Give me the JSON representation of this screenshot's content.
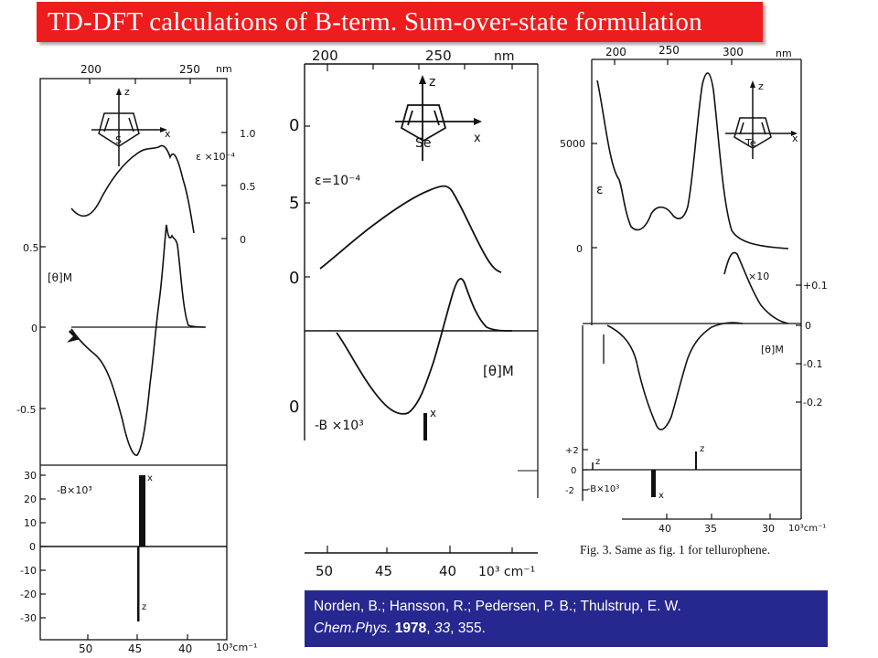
{
  "slide": {
    "title": "TD-DFT calculations of B-term.  Sum-over-state formulation"
  },
  "panels": {
    "thiophene": {
      "molecule_label": "S",
      "axis_z": "z",
      "axis_x": "x",
      "nm_ticks": [
        "200",
        "250"
      ],
      "nm_unit": "nm",
      "eps_label": "ε ×10⁻⁴",
      "eps_ticks": [
        "1.0",
        "0.5",
        "0"
      ],
      "theta_label": "[θ]M",
      "theta_ticks": [
        "0.5",
        "0",
        "-0.5"
      ],
      "b_label": "-B×10³",
      "b_ticks": [
        "30",
        "20",
        "10",
        "0",
        "-10",
        "-20",
        "-30"
      ],
      "bar_x": "x",
      "bar_z": "z",
      "wn_ticks": [
        "50",
        "45",
        "40"
      ],
      "wn_unit": "10³cm⁻¹"
    },
    "selenophene": {
      "molecule_label": "Se",
      "axis_z": "z",
      "axis_x": "x",
      "nm_ticks": [
        "200",
        "250"
      ],
      "nm_unit": "nm",
      "eps_label": "ε=10⁻⁴",
      "eps_ticks": [
        "0",
        "5",
        "0"
      ],
      "theta_label": "[θ]M",
      "b_label": "-B ×10³",
      "bar_x": "x",
      "wn_ticks": [
        "50",
        "45",
        "40"
      ],
      "wn_unit": "10³ cm⁻¹"
    },
    "tellurophene": {
      "molecule_label": "Te",
      "axis_z": "z",
      "axis_x": "x",
      "nm_ticks": [
        "200",
        "250",
        "300"
      ],
      "nm_unit": "nm",
      "eps_label": "ε",
      "eps_ticks": [
        "5000",
        "0"
      ],
      "scale_label": "×10",
      "theta_label": "[θ]M",
      "theta_ticks": [
        "+0.1",
        "0",
        "-0.1",
        "-0.2"
      ],
      "b_label": "-B×10³",
      "b_ticks": [
        "+2",
        "0",
        "-2"
      ],
      "bar_x": "x",
      "bar_z": "z",
      "small_z": "z",
      "wn_ticks": [
        "40",
        "35",
        "30"
      ],
      "wn_unit": "10³cm⁻¹",
      "caption": "Fig. 3. Same as fig. 1 for tellurophene."
    }
  },
  "citation": {
    "line1": "Norden, B.; Hansson, R.; Pedersen, P. B.; Thulstrup, E. W.",
    "journal": "Chem.Phys.",
    "year": "1978",
    "volume": "33",
    "pages": ", 355."
  }
}
